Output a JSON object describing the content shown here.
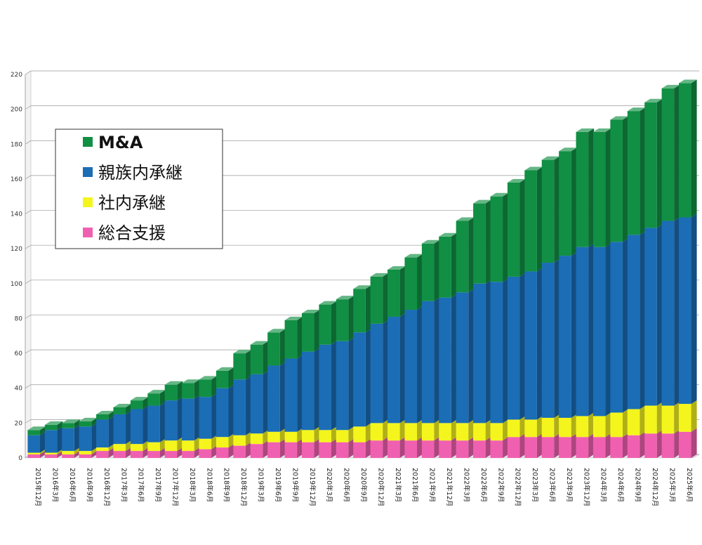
{
  "chart_data": {
    "type": "bar",
    "stacked": true,
    "style": "3d",
    "ylim": [
      0,
      220
    ],
    "yticks": [
      0,
      20,
      40,
      60,
      80,
      100,
      120,
      140,
      160,
      180,
      200,
      220
    ],
    "grid": true,
    "legend_position": "top-left",
    "categories": [
      "2015年12月",
      "2016年3月",
      "2016年6月",
      "2016年9月",
      "2016年12月",
      "2017年3月",
      "2017年6月",
      "2017年9月",
      "2017年12月",
      "2018年3月",
      "2018年6月",
      "2018年9月",
      "2018年12月",
      "2019年3月",
      "2019年6月",
      "2019年9月",
      "2019年12月",
      "2020年3月",
      "2020年6月",
      "2020年9月",
      "2020年12月",
      "2021年3月",
      "2021年6月",
      "2021年9月",
      "2021年12月",
      "2022年3月",
      "2022年6月",
      "2022年9月",
      "2022年12月",
      "2023年3月",
      "2023年6月",
      "2023年9月",
      "2023年12月",
      "2024年3月",
      "2024年6月",
      "2024年9月",
      "2024年12月",
      "2025年3月",
      "2025年6月"
    ],
    "series": [
      {
        "name": "総合支援",
        "color": "#f060b0",
        "values": [
          2,
          2,
          2,
          2,
          4,
          4,
          4,
          4,
          4,
          4,
          5,
          6,
          7,
          8,
          9,
          9,
          9,
          9,
          9,
          9,
          10,
          10,
          10,
          10,
          10,
          10,
          10,
          10,
          12,
          12,
          12,
          12,
          12,
          12,
          12,
          13,
          14,
          14,
          15
        ]
      },
      {
        "name": "社内承継",
        "color": "#f5f51e",
        "values": [
          1,
          1,
          2,
          2,
          2,
          4,
          4,
          5,
          6,
          6,
          6,
          6,
          6,
          6,
          6,
          6,
          7,
          7,
          7,
          9,
          10,
          10,
          10,
          10,
          10,
          10,
          10,
          10,
          10,
          10,
          11,
          11,
          12,
          12,
          14,
          15,
          16,
          16,
          16
        ]
      },
      {
        "name": "親族内承継",
        "color": "#1b6db5",
        "values": [
          10,
          13,
          13,
          14,
          16,
          17,
          20,
          21,
          23,
          24,
          24,
          28,
          32,
          34,
          38,
          42,
          45,
          49,
          51,
          54,
          57,
          61,
          65,
          70,
          72,
          75,
          80,
          81,
          82,
          85,
          89,
          93,
          97,
          97,
          98,
          100,
          102,
          106,
          107
        ]
      },
      {
        "name": "M&A",
        "color": "#118f44",
        "values": [
          3,
          3,
          3,
          3,
          3,
          4,
          5,
          7,
          9,
          9,
          10,
          10,
          15,
          17,
          19,
          22,
          22,
          23,
          24,
          25,
          27,
          27,
          30,
          33,
          35,
          41,
          46,
          49,
          54,
          58,
          59,
          60,
          66,
          66,
          70,
          71,
          72,
          76,
          77
        ]
      }
    ],
    "legend": [
      {
        "label": "M&A",
        "color": "#118f44"
      },
      {
        "label": "親族内承継",
        "color": "#1b6db5"
      },
      {
        "label": "社内承継",
        "color": "#f5f51e"
      },
      {
        "label": "総合支援",
        "color": "#f060b0"
      }
    ]
  }
}
